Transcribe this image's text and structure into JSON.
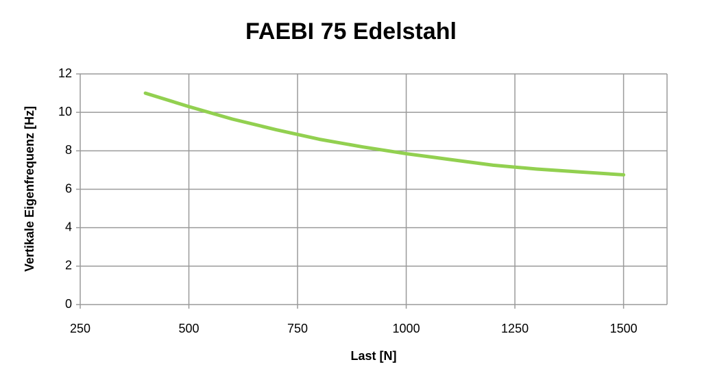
{
  "chart_data": {
    "type": "line",
    "title": "FAEBI 75 Edelstahl",
    "x_label": "Last [N]",
    "y_label": "Vertikale Eigenfrequenz [Hz]",
    "x": [
      400,
      500,
      600,
      700,
      800,
      900,
      1000,
      1100,
      1200,
      1300,
      1400,
      1500
    ],
    "series": [
      {
        "name": "FAEBI 75 Edelstahl",
        "color": "#92d050",
        "values": [
          11.0,
          10.3,
          9.65,
          9.1,
          8.6,
          8.2,
          7.85,
          7.55,
          7.25,
          7.05,
          6.9,
          6.75
        ]
      }
    ],
    "xlim": [
      250,
      1600
    ],
    "xticks": [
      250,
      500,
      750,
      1000,
      1250,
      1500
    ],
    "ylim": [
      0,
      12
    ],
    "yticks": [
      0,
      2,
      4,
      6,
      8,
      10,
      12
    ],
    "grid": true
  }
}
